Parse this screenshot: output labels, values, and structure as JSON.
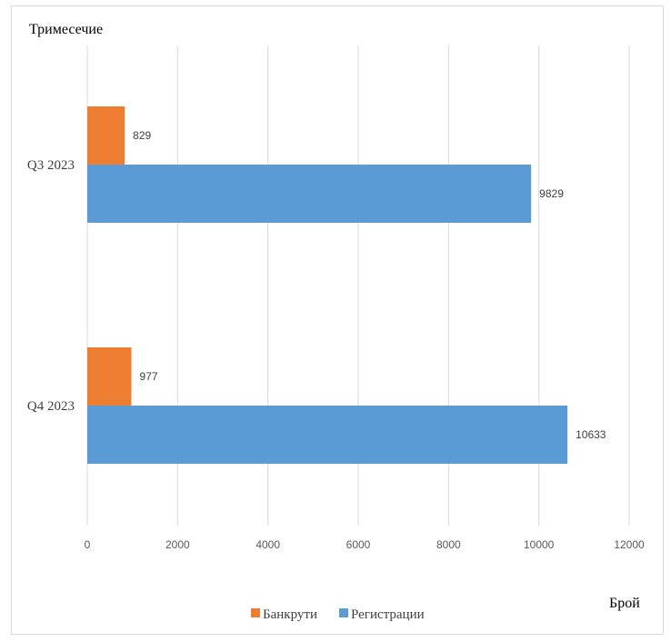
{
  "chart_data": {
    "type": "bar",
    "orientation": "horizontal",
    "categories": [
      "Q3 2023",
      "Q4 2023"
    ],
    "series": [
      {
        "name": "Банкрути",
        "color": "#ED7D31",
        "values": [
          829,
          977
        ]
      },
      {
        "name": "Регистрации",
        "color": "#5B9BD5",
        "values": [
          9829,
          10633
        ]
      }
    ],
    "ylabel": "Тримесечие",
    "xlabel": "Брой",
    "xlim": [
      0,
      12000
    ],
    "xticks": [
      "0",
      "2000",
      "4000",
      "6000",
      "8000",
      "10000",
      "12000"
    ],
    "grid": true,
    "legend": "bottom",
    "data_labels": true
  }
}
